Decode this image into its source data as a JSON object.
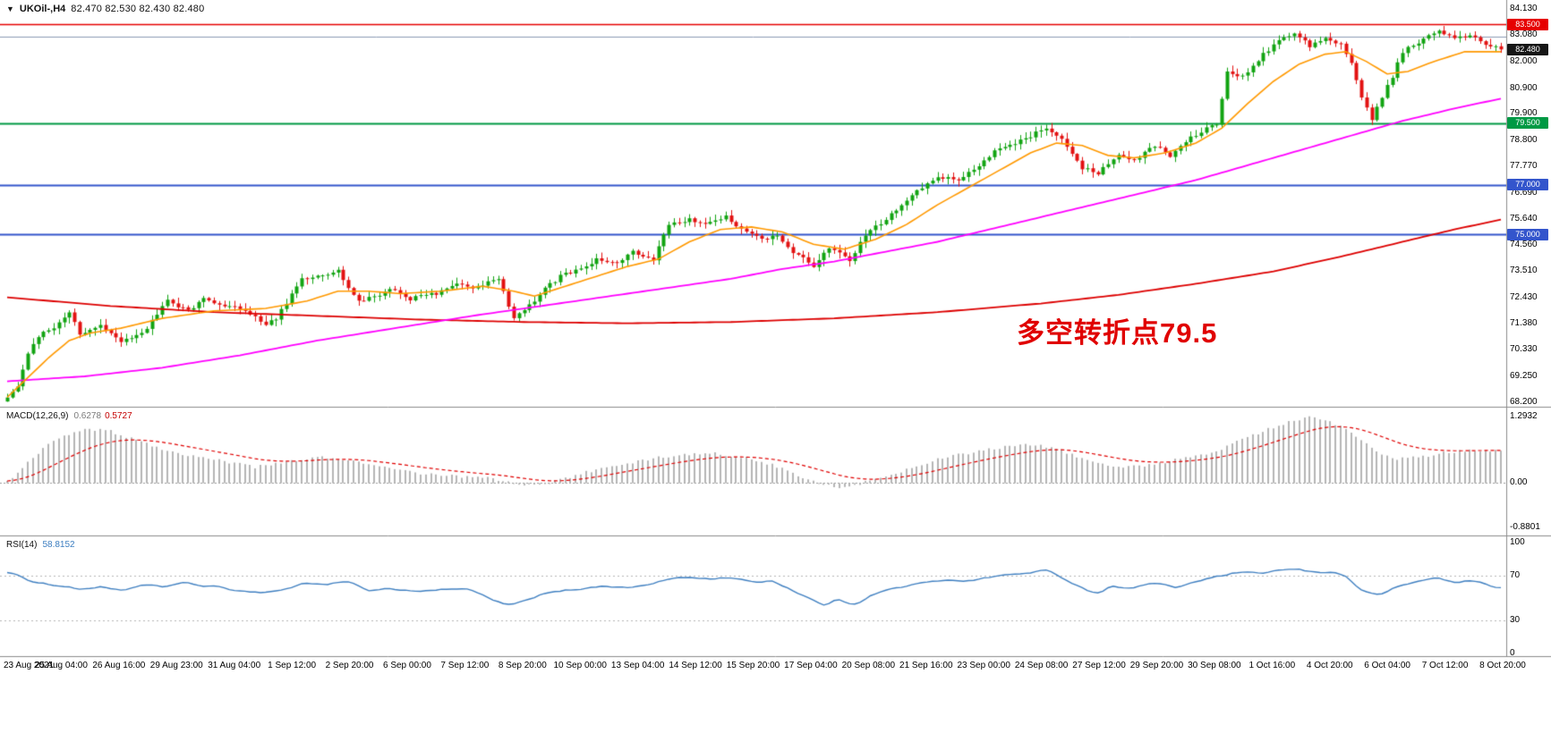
{
  "header": {
    "icon": "▼",
    "symbol_timeframe": "UKOil-,H4",
    "ohlc": "82.470 82.530 82.430 82.480"
  },
  "annotation": {
    "text": "多空转折点79.5",
    "color": "#e00000"
  },
  "colors": {
    "background": "#ffffff",
    "candle_up": "#12a412",
    "candle_down": "#e31212",
    "ma_fast": "#ff9900",
    "ma_mid": "#ff00ff",
    "ma_slow": "#dd0000",
    "macd_hist": "#b5b5b5",
    "macd_signal": "#e00000",
    "rsi_line": "#3e7fc1",
    "divider": "#8c8c8c",
    "axis_text": "#000000"
  },
  "chart_data": {
    "type": "candlestick",
    "title": "UKOil- H4 chart with MACD and RSI",
    "symbol": "UKOil-",
    "timeframe": "H4",
    "bars": 290,
    "price_range": [
      68.2,
      84.35
    ],
    "levels": [
      {
        "value": 83.5,
        "color": "#e60000",
        "width": 1.6
      },
      {
        "value": 83.0,
        "color": "#8c9cb4",
        "width": 1
      },
      {
        "value": 79.5,
        "color": "#009944",
        "width": 2
      },
      {
        "value": 77.0,
        "color": "#3355cc",
        "width": 2
      },
      {
        "value": 75.0,
        "color": "#3355cc",
        "width": 2
      }
    ],
    "close_waypoints": [
      [
        0,
        68.35
      ],
      [
        2,
        68.9
      ],
      [
        4,
        70.1
      ],
      [
        6,
        70.9
      ],
      [
        9,
        71.2
      ],
      [
        12,
        71.9
      ],
      [
        14,
        70.9
      ],
      [
        18,
        71.3
      ],
      [
        22,
        70.6
      ],
      [
        27,
        71.2
      ],
      [
        31,
        72.3
      ],
      [
        35,
        71.9
      ],
      [
        38,
        72.4
      ],
      [
        43,
        72.1
      ],
      [
        47,
        71.8
      ],
      [
        50,
        71.3
      ],
      [
        52,
        71.6
      ],
      [
        57,
        73.2
      ],
      [
        61,
        73.4
      ],
      [
        64,
        73.5
      ],
      [
        68,
        72.3
      ],
      [
        71,
        72.5
      ],
      [
        75,
        72.8
      ],
      [
        78,
        72.4
      ],
      [
        83,
        72.6
      ],
      [
        87,
        73.0
      ],
      [
        90,
        72.8
      ],
      [
        95,
        73.2
      ],
      [
        98,
        71.6
      ],
      [
        100,
        71.9
      ],
      [
        104,
        72.8
      ],
      [
        107,
        73.3
      ],
      [
        111,
        73.6
      ],
      [
        114,
        74.0
      ],
      [
        118,
        73.8
      ],
      [
        121,
        74.3
      ],
      [
        125,
        74.0
      ],
      [
        128,
        75.4
      ],
      [
        132,
        75.6
      ],
      [
        135,
        75.4
      ],
      [
        139,
        75.7
      ],
      [
        142,
        75.2
      ],
      [
        146,
        74.8
      ],
      [
        149,
        75.0
      ],
      [
        152,
        74.3
      ],
      [
        156,
        73.7
      ],
      [
        159,
        74.5
      ],
      [
        163,
        73.9
      ],
      [
        166,
        75.0
      ],
      [
        170,
        75.6
      ],
      [
        173,
        76.2
      ],
      [
        177,
        76.9
      ],
      [
        180,
        77.3
      ],
      [
        184,
        77.2
      ],
      [
        187,
        77.6
      ],
      [
        191,
        78.4
      ],
      [
        194,
        78.6
      ],
      [
        198,
        79.0
      ],
      [
        201,
        79.3
      ],
      [
        204,
        78.8
      ],
      [
        208,
        77.7
      ],
      [
        211,
        77.5
      ],
      [
        215,
        78.2
      ],
      [
        218,
        78.0
      ],
      [
        222,
        78.6
      ],
      [
        225,
        78.2
      ],
      [
        229,
        78.9
      ],
      [
        232,
        79.3
      ],
      [
        234,
        79.5
      ],
      [
        236,
        81.6
      ],
      [
        239,
        81.4
      ],
      [
        243,
        82.3
      ],
      [
        246,
        82.8
      ],
      [
        249,
        83.2
      ],
      [
        252,
        82.6
      ],
      [
        255,
        83.0
      ],
      [
        258,
        82.7
      ],
      [
        260,
        81.9
      ],
      [
        262,
        80.5
      ],
      [
        264,
        79.7
      ],
      [
        266,
        80.6
      ],
      [
        268,
        81.4
      ],
      [
        270,
        82.4
      ],
      [
        274,
        82.9
      ],
      [
        277,
        83.3
      ],
      [
        280,
        82.9
      ],
      [
        283,
        83.1
      ],
      [
        286,
        82.7
      ],
      [
        289,
        82.48
      ]
    ],
    "ma_fast_waypoints": [
      [
        0,
        68.4
      ],
      [
        4,
        69.2
      ],
      [
        8,
        70.0
      ],
      [
        12,
        70.7
      ],
      [
        16,
        71.0
      ],
      [
        22,
        71.2
      ],
      [
        30,
        71.6
      ],
      [
        40,
        71.9
      ],
      [
        50,
        72.0
      ],
      [
        58,
        72.3
      ],
      [
        64,
        72.7
      ],
      [
        70,
        72.7
      ],
      [
        76,
        72.6
      ],
      [
        84,
        72.7
      ],
      [
        92,
        72.9
      ],
      [
        98,
        72.7
      ],
      [
        102,
        72.5
      ],
      [
        108,
        72.9
      ],
      [
        114,
        73.3
      ],
      [
        120,
        73.7
      ],
      [
        126,
        74.0
      ],
      [
        132,
        74.7
      ],
      [
        138,
        75.2
      ],
      [
        144,
        75.3
      ],
      [
        150,
        75.1
      ],
      [
        156,
        74.6
      ],
      [
        162,
        74.4
      ],
      [
        168,
        74.8
      ],
      [
        174,
        75.4
      ],
      [
        180,
        76.2
      ],
      [
        186,
        76.9
      ],
      [
        192,
        77.6
      ],
      [
        198,
        78.3
      ],
      [
        203,
        78.7
      ],
      [
        208,
        78.6
      ],
      [
        213,
        78.2
      ],
      [
        218,
        78.1
      ],
      [
        224,
        78.3
      ],
      [
        230,
        78.7
      ],
      [
        235,
        79.3
      ],
      [
        240,
        80.3
      ],
      [
        245,
        81.2
      ],
      [
        250,
        81.9
      ],
      [
        255,
        82.3
      ],
      [
        259,
        82.4
      ],
      [
        263,
        82.0
      ],
      [
        267,
        81.5
      ],
      [
        271,
        81.6
      ],
      [
        276,
        82.0
      ],
      [
        282,
        82.4
      ],
      [
        289,
        82.4
      ]
    ],
    "ma_mid_waypoints": [
      [
        0,
        69.05
      ],
      [
        15,
        69.25
      ],
      [
        30,
        69.6
      ],
      [
        45,
        70.1
      ],
      [
        60,
        70.7
      ],
      [
        75,
        71.2
      ],
      [
        90,
        71.7
      ],
      [
        100,
        72.0
      ],
      [
        110,
        72.3
      ],
      [
        120,
        72.6
      ],
      [
        130,
        72.9
      ],
      [
        140,
        73.2
      ],
      [
        150,
        73.6
      ],
      [
        160,
        73.9
      ],
      [
        170,
        74.3
      ],
      [
        180,
        74.7
      ],
      [
        190,
        75.2
      ],
      [
        200,
        75.7
      ],
      [
        210,
        76.2
      ],
      [
        220,
        76.7
      ],
      [
        230,
        77.2
      ],
      [
        240,
        77.8
      ],
      [
        250,
        78.4
      ],
      [
        260,
        79.0
      ],
      [
        270,
        79.6
      ],
      [
        280,
        80.1
      ],
      [
        289,
        80.5
      ]
    ],
    "ma_slow_waypoints": [
      [
        0,
        72.45
      ],
      [
        20,
        72.1
      ],
      [
        40,
        71.85
      ],
      [
        60,
        71.7
      ],
      [
        80,
        71.55
      ],
      [
        100,
        71.45
      ],
      [
        120,
        71.4
      ],
      [
        140,
        71.45
      ],
      [
        160,
        71.6
      ],
      [
        180,
        71.85
      ],
      [
        200,
        72.2
      ],
      [
        215,
        72.55
      ],
      [
        230,
        73.0
      ],
      [
        245,
        73.5
      ],
      [
        258,
        74.1
      ],
      [
        270,
        74.7
      ],
      [
        280,
        75.2
      ],
      [
        289,
        75.6
      ]
    ],
    "price_ticks": [
      {
        "label": "84.130",
        "value": 84.13
      },
      {
        "label": "83.080",
        "value": 83.08
      },
      {
        "label": "82.000",
        "value": 82.0
      },
      {
        "label": "80.900",
        "value": 80.9
      },
      {
        "label": "79.900",
        "value": 79.9
      },
      {
        "label": "78.800",
        "value": 78.8
      },
      {
        "label": "77.770",
        "value": 77.77
      },
      {
        "label": "76.690",
        "value": 76.69
      },
      {
        "label": "75.640",
        "value": 75.64
      },
      {
        "label": "74.560",
        "value": 74.56
      },
      {
        "label": "73.510",
        "value": 73.51
      },
      {
        "label": "72.430",
        "value": 72.43
      },
      {
        "label": "71.380",
        "value": 71.38
      },
      {
        "label": "70.330",
        "value": 70.33
      },
      {
        "label": "69.250",
        "value": 69.25
      },
      {
        "label": "68.200",
        "value": 68.2
      }
    ],
    "badges": [
      {
        "label": "83.500",
        "value": 83.5,
        "bg": "#e60000"
      },
      {
        "label": "82.480",
        "value": 82.48,
        "bg": "#161616"
      },
      {
        "label": "79.500",
        "value": 79.5,
        "bg": "#009944"
      },
      {
        "label": "77.000",
        "value": 77.0,
        "bg": "#3355cc"
      },
      {
        "label": "75.000",
        "value": 75.0,
        "bg": "#3355cc"
      }
    ],
    "macd": {
      "title": "MACD(12,26,9)",
      "main_value": "0.6278",
      "signal_value": "0.5727",
      "range": [
        -1.02,
        1.45
      ],
      "axis_ticks": [
        {
          "label": "1.2932",
          "value": 1.2932
        },
        {
          "label": "0.00",
          "value": 0
        },
        {
          "label": "-0.8801",
          "value": -0.8801
        }
      ],
      "hist_waypoints": [
        [
          0,
          0.02
        ],
        [
          4,
          0.4
        ],
        [
          8,
          0.75
        ],
        [
          12,
          0.95
        ],
        [
          16,
          1.05
        ],
        [
          20,
          1.0
        ],
        [
          26,
          0.8
        ],
        [
          32,
          0.6
        ],
        [
          40,
          0.45
        ],
        [
          48,
          0.3
        ],
        [
          54,
          0.4
        ],
        [
          60,
          0.5
        ],
        [
          66,
          0.45
        ],
        [
          72,
          0.3
        ],
        [
          80,
          0.18
        ],
        [
          88,
          0.12
        ],
        [
          94,
          0.08
        ],
        [
          98,
          -0.02
        ],
        [
          102,
          -0.06
        ],
        [
          106,
          0.02
        ],
        [
          112,
          0.2
        ],
        [
          118,
          0.35
        ],
        [
          124,
          0.45
        ],
        [
          130,
          0.55
        ],
        [
          136,
          0.58
        ],
        [
          142,
          0.5
        ],
        [
          148,
          0.35
        ],
        [
          153,
          0.15
        ],
        [
          157,
          0.0
        ],
        [
          161,
          -0.1
        ],
        [
          165,
          -0.03
        ],
        [
          169,
          0.1
        ],
        [
          174,
          0.25
        ],
        [
          180,
          0.45
        ],
        [
          186,
          0.58
        ],
        [
          192,
          0.68
        ],
        [
          197,
          0.74
        ],
        [
          202,
          0.7
        ],
        [
          207,
          0.5
        ],
        [
          212,
          0.35
        ],
        [
          217,
          0.3
        ],
        [
          223,
          0.38
        ],
        [
          229,
          0.5
        ],
        [
          234,
          0.62
        ],
        [
          239,
          0.85
        ],
        [
          244,
          1.05
        ],
        [
          249,
          1.22
        ],
        [
          253,
          1.29
        ],
        [
          257,
          1.15
        ],
        [
          261,
          0.9
        ],
        [
          265,
          0.6
        ],
        [
          269,
          0.45
        ],
        [
          273,
          0.5
        ],
        [
          278,
          0.58
        ],
        [
          283,
          0.64
        ],
        [
          289,
          0.628
        ]
      ]
    },
    "rsi": {
      "title": "RSI(14)",
      "value": "58.8152",
      "levels": [
        70,
        30
      ],
      "axis_ticks": [
        {
          "label": "100",
          "value": 100
        },
        {
          "label": "70",
          "value": 70
        },
        {
          "label": "30",
          "value": 30
        },
        {
          "label": "0",
          "value": 0
        }
      ],
      "waypoints": [
        [
          0,
          74
        ],
        [
          3,
          68
        ],
        [
          6,
          64
        ],
        [
          10,
          61
        ],
        [
          14,
          58
        ],
        [
          18,
          60
        ],
        [
          22,
          56
        ],
        [
          26,
          62
        ],
        [
          30,
          60
        ],
        [
          34,
          64
        ],
        [
          38,
          61
        ],
        [
          42,
          59
        ],
        [
          46,
          56
        ],
        [
          50,
          55
        ],
        [
          54,
          58
        ],
        [
          58,
          64
        ],
        [
          62,
          62
        ],
        [
          66,
          65
        ],
        [
          70,
          56
        ],
        [
          74,
          58
        ],
        [
          78,
          57
        ],
        [
          82,
          56
        ],
        [
          86,
          59
        ],
        [
          90,
          57
        ],
        [
          94,
          48
        ],
        [
          97,
          43
        ],
        [
          100,
          47
        ],
        [
          104,
          54
        ],
        [
          108,
          57
        ],
        [
          112,
          59
        ],
        [
          116,
          61
        ],
        [
          120,
          59
        ],
        [
          124,
          62
        ],
        [
          128,
          67
        ],
        [
          132,
          69
        ],
        [
          136,
          67
        ],
        [
          140,
          69
        ],
        [
          144,
          64
        ],
        [
          148,
          66
        ],
        [
          152,
          57
        ],
        [
          155,
          50
        ],
        [
          158,
          43
        ],
        [
          161,
          49
        ],
        [
          164,
          44
        ],
        [
          167,
          52
        ],
        [
          170,
          57
        ],
        [
          174,
          61
        ],
        [
          178,
          64
        ],
        [
          182,
          67
        ],
        [
          186,
          65
        ],
        [
          190,
          69
        ],
        [
          194,
          71
        ],
        [
          198,
          73
        ],
        [
          201,
          75
        ],
        [
          204,
          69
        ],
        [
          208,
          59
        ],
        [
          211,
          54
        ],
        [
          214,
          61
        ],
        [
          218,
          59
        ],
        [
          222,
          64
        ],
        [
          226,
          59
        ],
        [
          230,
          65
        ],
        [
          234,
          69
        ],
        [
          238,
          73
        ],
        [
          242,
          72
        ],
        [
          246,
          75
        ],
        [
          250,
          76
        ],
        [
          253,
          73
        ],
        [
          256,
          74
        ],
        [
          259,
          70
        ],
        [
          262,
          57
        ],
        [
          265,
          52
        ],
        [
          268,
          58
        ],
        [
          271,
          63
        ],
        [
          274,
          66
        ],
        [
          277,
          69
        ],
        [
          280,
          63
        ],
        [
          283,
          66
        ],
        [
          286,
          63
        ],
        [
          289,
          58.8
        ]
      ]
    },
    "time_labels": [
      "23 Aug 2021",
      "25 Aug 04:00",
      "26 Aug 16:00",
      "29 Aug 23:00",
      "31 Aug 04:00",
      "1 Sep 12:00",
      "2 Sep 20:00",
      "6 Sep 00:00",
      "7 Sep 12:00",
      "8 Sep 20:00",
      "10 Sep 00:00",
      "13 Sep 04:00",
      "14 Sep 12:00",
      "15 Sep 20:00",
      "17 Sep 04:00",
      "20 Sep 08:00",
      "21 Sep 16:00",
      "23 Sep 00:00",
      "24 Sep 08:00",
      "27 Sep 12:00",
      "29 Sep 20:00",
      "30 Sep 08:00",
      "1 Oct 16:00",
      "4 Oct 20:00",
      "6 Oct 04:00",
      "7 Oct 12:00",
      "8 Oct 20:00"
    ]
  }
}
